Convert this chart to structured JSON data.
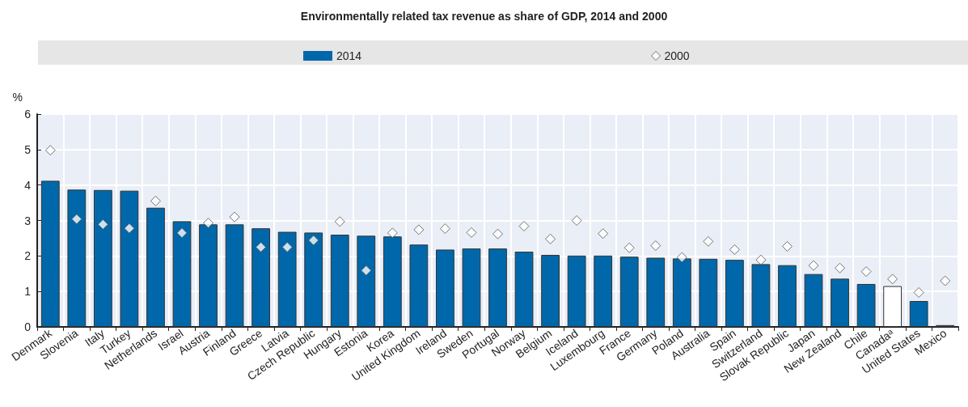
{
  "chart_data": {
    "type": "bar",
    "title": "Environmentally related tax revenue as share of GDP, 2014 and 2000",
    "ylabel": "%",
    "categories": [
      "Denmark",
      "Slovenia",
      "Italy",
      "Turkey",
      "Netherlands",
      "Israel",
      "Austria",
      "Finland",
      "Greece",
      "Latvia",
      "Czech Republic",
      "Hungary",
      "Estonia",
      "Korea",
      "United Kingdom",
      "Ireland",
      "Sweden",
      "Portugal",
      "Norway",
      "Belgium",
      "Iceland",
      "Luxembourg",
      "France",
      "Germany",
      "Poland",
      "Australia",
      "Spain",
      "Switzerland",
      "Slovak Republic",
      "Japan",
      "New Zealand",
      "Chile",
      "Canadaᵃ",
      "United States",
      "Mexico"
    ],
    "series": [
      {
        "name": "2014",
        "color": "#0068aa",
        "colors": [
          "#0068aa",
          "#0068aa",
          "#0068aa",
          "#0068aa",
          "#0068aa",
          "#0068aa",
          "#0068aa",
          "#0068aa",
          "#0068aa",
          "#0068aa",
          "#0068aa",
          "#0068aa",
          "#0068aa",
          "#0068aa",
          "#0068aa",
          "#0068aa",
          "#0068aa",
          "#0068aa",
          "#0068aa",
          "#0068aa",
          "#0068aa",
          "#0068aa",
          "#0068aa",
          "#0068aa",
          "#0068aa",
          "#0068aa",
          "#0068aa",
          "#0068aa",
          "#0068aa",
          "#0068aa",
          "#0068aa",
          "#0068aa",
          "#ffffff",
          "#0068aa",
          "#0068aa"
        ],
        "values": [
          4.12,
          3.87,
          3.86,
          3.84,
          3.36,
          2.98,
          2.89,
          2.89,
          2.78,
          2.68,
          2.66,
          2.6,
          2.57,
          2.55,
          2.32,
          2.18,
          2.21,
          2.21,
          2.12,
          2.03,
          2.01,
          2.01,
          1.98,
          1.95,
          1.93,
          1.92,
          1.89,
          1.77,
          1.74,
          1.49,
          1.36,
          1.21,
          1.15,
          0.73,
          0.05
        ]
      },
      {
        "name": "2000",
        "type": "scatter",
        "color": "#ffffff",
        "marker": "diamond",
        "values": [
          4.98,
          3.04,
          2.89,
          2.78,
          3.55,
          2.65,
          2.93,
          3.1,
          2.25,
          2.25,
          2.44,
          2.97,
          1.59,
          2.65,
          2.74,
          2.77,
          2.66,
          2.62,
          2.84,
          2.48,
          3.0,
          2.63,
          2.23,
          2.29,
          1.96,
          2.41,
          2.18,
          1.89,
          2.27,
          1.73,
          1.66,
          1.56,
          1.35,
          0.97,
          1.3
        ]
      }
    ],
    "ylim": [
      0,
      6
    ],
    "yticks": [
      0,
      1,
      2,
      3,
      4,
      5,
      6
    ],
    "grid": true,
    "legend": "top"
  }
}
